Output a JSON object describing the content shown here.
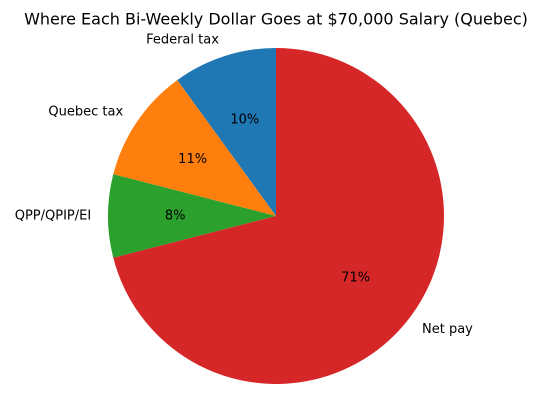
{
  "chart_data": {
    "type": "pie",
    "title": "Where Each Bi-Weekly Dollar Goes at $70,000 Salary (Quebec)",
    "categories": [
      "Federal tax",
      "Quebec tax",
      "QPP/QPIP/EI",
      "Net pay"
    ],
    "values": [
      10,
      11,
      8,
      71
    ],
    "value_labels": [
      "10%",
      "11%",
      "8%",
      "71%"
    ],
    "colors": [
      "#1f77b4",
      "#ff7f0e",
      "#2ca02c",
      "#d62728"
    ],
    "start_angle": 90,
    "direction": "counterclockwise"
  }
}
